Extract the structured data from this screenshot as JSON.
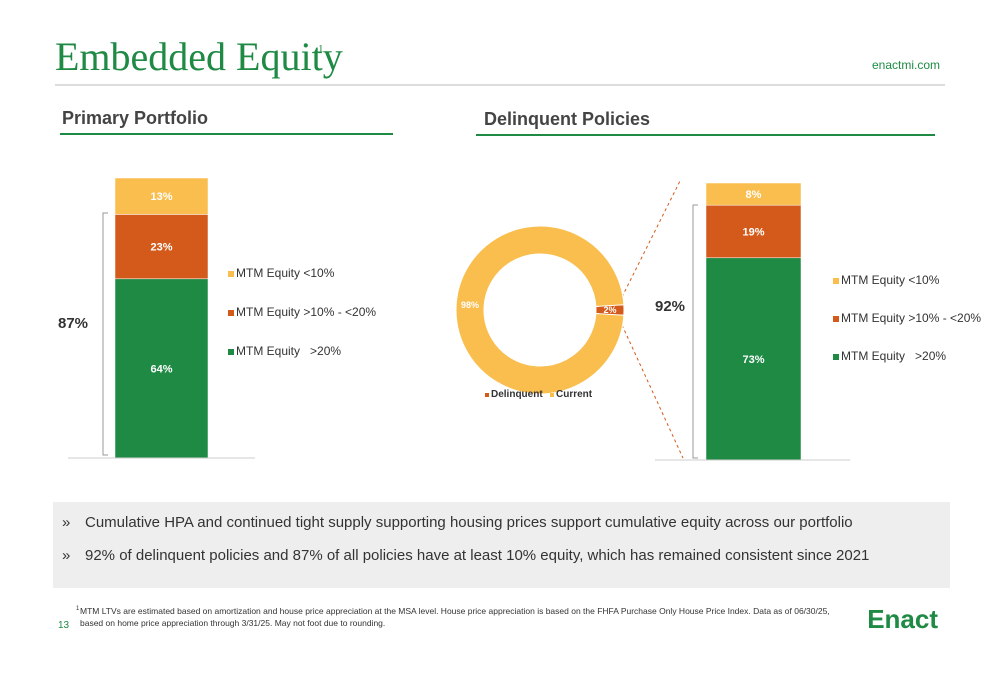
{
  "header": {
    "title": "Embedded Equity",
    "title_note": "1",
    "site": "enactmi.com"
  },
  "sections": {
    "left_title": "Primary Portfolio",
    "right_title": "Delinquent Policies"
  },
  "chart_data": [
    {
      "type": "stacked-bar",
      "bracket_label": "87%",
      "series": [
        {
          "name": "MTM Equity <10%",
          "color": "#f9be4d",
          "values": [
            13
          ],
          "value_labels": [
            "13%"
          ]
        },
        {
          "name": "MTM Equity >10% - <20%",
          "color": "#d35a1a",
          "values": [
            23
          ],
          "value_labels": [
            "23%"
          ]
        },
        {
          "name": "MTM Equity   >20%",
          "color": "#1e8a44",
          "values": [
            64
          ],
          "value_labels": [
            "64%"
          ]
        }
      ]
    },
    {
      "type": "pie",
      "categories": [
        "Delinquent",
        "Current"
      ],
      "values": [
        2,
        98
      ],
      "value_labels": [
        "2%",
        "98%"
      ],
      "colors": [
        "#d35a1a",
        "#f9be4d"
      ]
    },
    {
      "type": "stacked-bar",
      "bracket_label": "92%",
      "series": [
        {
          "name": "MTM Equity <10%",
          "color": "#f9be4d",
          "values": [
            8
          ],
          "value_labels": [
            "8%"
          ]
        },
        {
          "name": "MTM Equity >10% - <20%",
          "color": "#d35a1a",
          "values": [
            19
          ],
          "value_labels": [
            "19%"
          ]
        },
        {
          "name": "MTM Equity   >20%",
          "color": "#1e8a44",
          "values": [
            73
          ],
          "value_labels": [
            "73%"
          ]
        }
      ]
    }
  ],
  "bullets": [
    "Cumulative HPA and continued tight supply supporting housing prices support cumulative equity across our portfolio",
    "92% of delinquent policies and 87% of all policies have at least 10% equity, which has remained consistent since 2021"
  ],
  "bullet_marker": "»",
  "footnote": {
    "marker": "1",
    "lines": [
      "MTM LTVs are estimated based on amortization and house price appreciation at the MSA level. House price appreciation is based on the FHFA Purchase Only House Price Index. Data as of 06/30/25,",
      "based on home price appreciation through 3/31/25. May not foot due to rounding."
    ]
  },
  "page_number": "13",
  "logo": "Enact"
}
